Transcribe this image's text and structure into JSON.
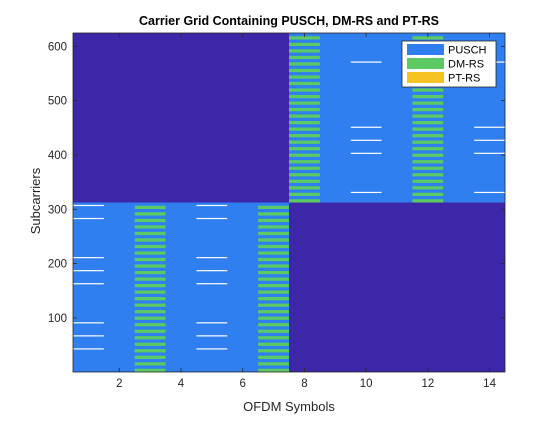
{
  "chart_data": {
    "type": "heatmap",
    "title": "Carrier Grid Containing PUSCH, DM-RS and PT-RS",
    "xlabel": "OFDM Symbols",
    "ylabel": "Subcarriers",
    "xlim": [
      0.5,
      14.5
    ],
    "ylim": [
      0.5,
      624.5
    ],
    "xticks": [
      2,
      4,
      6,
      8,
      10,
      12,
      14
    ],
    "yticks": [
      100,
      200,
      300,
      400,
      500,
      600
    ],
    "grid": false,
    "legend_position": "top-right",
    "colors": {
      "empty": "#3e26a8",
      "PUSCH": "#2f7ff0",
      "DM-RS": "#5cc962",
      "PT-RS": "#f6c324",
      "PT-RS_lines": "#ffffff"
    },
    "legend": [
      "PUSCH",
      "DM-RS",
      "PT-RS"
    ],
    "pusch_regions": [
      {
        "symbols": [
          1,
          7
        ],
        "subcarriers": [
          1,
          312
        ]
      },
      {
        "symbols": [
          8,
          14
        ],
        "subcarriers": [
          313,
          624
        ]
      }
    ],
    "dmrs_symbols": [
      {
        "symbol": 3,
        "subcarriers": [
          1,
          312
        ]
      },
      {
        "symbol": 7,
        "subcarriers": [
          1,
          312
        ]
      },
      {
        "symbol": 8,
        "subcarriers": [
          313,
          624
        ]
      },
      {
        "symbol": 12,
        "subcarriers": [
          313,
          624
        ]
      }
    ],
    "ptrs": {
      "lower": {
        "symbols": [
          1,
          5
        ],
        "subcarriers": [
          43,
          67,
          91,
          163,
          187,
          211,
          283,
          307
        ]
      },
      "upper": {
        "symbols": [
          10,
          14
        ],
        "subcarriers": [
          331,
          403,
          427,
          451,
          571
        ]
      }
    }
  }
}
